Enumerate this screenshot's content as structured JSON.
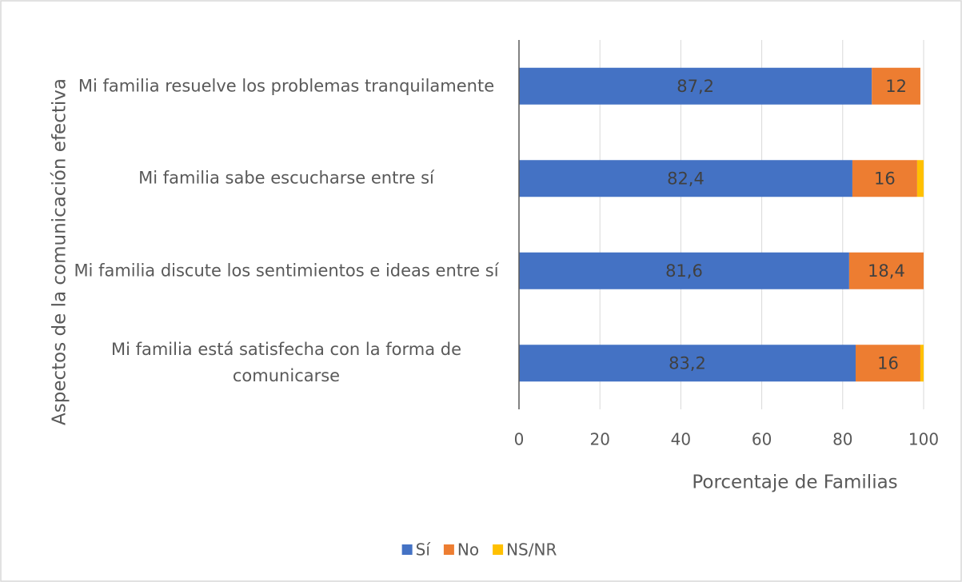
{
  "chart_data": {
    "type": "stacked-barh",
    "categories": [
      "Mi familia resuelve los problemas tranquilamente",
      "Mi familia sabe escucharse entre sí",
      "Mi familia discute los sentimientos e ideas entre sí",
      "Mi familia está satisfecha con la forma de comunicarse"
    ],
    "series": [
      {
        "name": "Sí",
        "color": "#4472c4",
        "values": [
          87.2,
          82.4,
          81.6,
          83.2
        ],
        "value_labels": [
          "87,2",
          "82,4",
          "81,6",
          "83,2"
        ]
      },
      {
        "name": "No",
        "color": "#ed7d31",
        "values": [
          12,
          16,
          18.4,
          16
        ],
        "value_labels": [
          "12",
          "16",
          "18,4",
          "16"
        ]
      },
      {
        "name": "NS/NR",
        "color": "#ffc000",
        "values": [
          0,
          1.6,
          0,
          0.8
        ]
      }
    ],
    "xlim": [
      0,
      100
    ],
    "xticks": [
      0,
      20,
      40,
      60,
      80,
      100
    ],
    "xlabel": "Porcentaje de Familias",
    "ylabel": "Aspectos de la comunicación efectiva",
    "grid": true,
    "legend": "bottom"
  }
}
